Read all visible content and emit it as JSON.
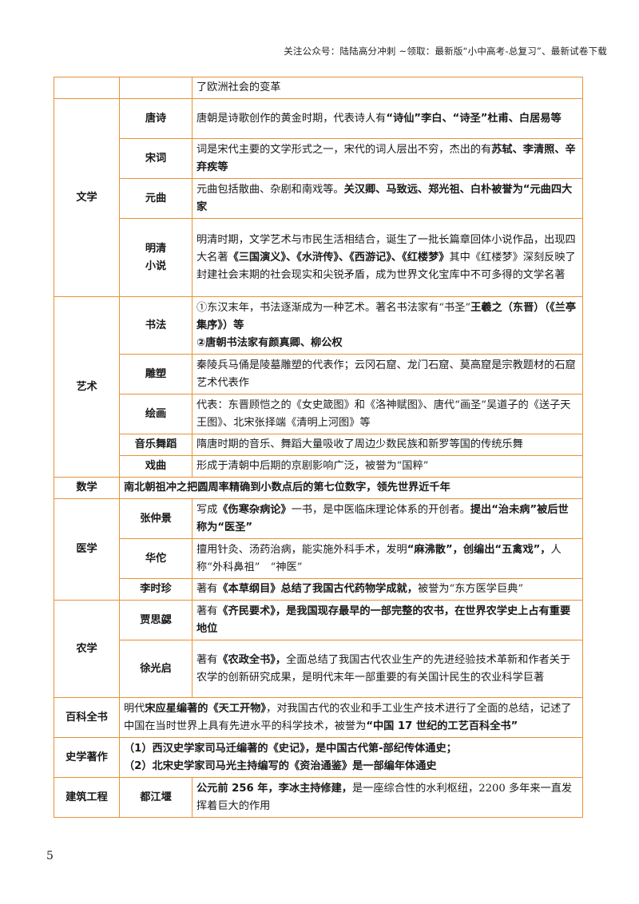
{
  "header": {
    "note": "关注公众号：陆陆高分冲刺  ~领取：最新版“小中高考-总复习”、最新试卷下载"
  },
  "page_number": "5",
  "table": {
    "top_row": {
      "text": "了欧洲社会的变革"
    },
    "literature": {
      "category": "文学",
      "tang": {
        "label": "唐诗",
        "t1": "唐朝是诗歌创作的黄金时期，代表诗人有",
        "b1": "“诗仙”李白、“诗圣”杜甫、白居易等"
      },
      "song": {
        "label": "宋词",
        "t1": "词是宋代主要的文学形式之一，宋代的词人层出不穷，杰出的有",
        "b1": "苏轼、李清照、辛弃疾等"
      },
      "yuan": {
        "label": "元曲",
        "t1": "元曲包括散曲、杂剧和南戏等。",
        "b1": "关汉卿、马致远、郑光祖、白朴被誉为“元曲四大家"
      },
      "mingqing": {
        "label1": "明清",
        "label2": "小说",
        "t1": "明清时期，文学艺术与市民生活相结合，诞生了一批长篇章回体小说作品，出现四大名著",
        "b1": "《三国演义》、《水浒传》、《西游记》、《红楼梦》",
        "t2": "其中《红楼梦》深刻反映了封建社会末期的社会现实和尖锐矛盾，成为世界文化宝库中不可多得的文学名著"
      }
    },
    "art": {
      "category": "艺术",
      "calligraphy": {
        "label": "书法",
        "t1": "①东汉末年，书法逐渐成为一种艺术。著名书法家有“书圣”",
        "b1": "王羲之（东晋）（《兰亭集序》）等",
        "b2": "②唐朝书法家有颜真卿、柳公权"
      },
      "sculpture": {
        "label": "雕塑",
        "t1": "秦陵兵马俑是陵墓雕塑的代表作；云冈石窟、龙门石窟、莫高窟是宗教题材的石窟艺术代表作"
      },
      "painting": {
        "label": "绘画",
        "t1": "代表：东晋顾恺之的《女史箴图》和《洛神赋图》、唐代“画圣”吴道子的《送子天王图》、北宋张择端《清明上河图》等"
      },
      "music": {
        "label": "音乐舞蹈",
        "t1": "隋唐时期的音乐、舞蹈大量吸收了周边少数民族和新罗等国的传统乐舞"
      },
      "opera": {
        "label": "戏曲",
        "t1": "形成于清朝中后期的京剧影响广泛，被誉为“国粹”"
      }
    },
    "math": {
      "category": "数学",
      "b1": "南北朝祖冲之把圆周率精确到小数点后的第七位数字，领先世界近千年"
    },
    "medicine": {
      "category": "医学",
      "zhang": {
        "label": "张仲景",
        "t1": "写成",
        "b1": "《伤寒杂病论》",
        "t2": "一书，是中医临床理论体系的开创者。",
        "b2": "提出“治未病”被后世称为“医圣”"
      },
      "hua": {
        "label": "华佗",
        "t1": "擅用针灸、汤药治病，能实施外科手术，发明",
        "b1": "“麻沸散”，创编出“五禽戏”，",
        "t2": "人称“外科鼻祖”　“神医”"
      },
      "li": {
        "label": "李时珍",
        "t1": "著有",
        "b1": "《本草纲目》总结了我国古代药物学成就，",
        "t2": "被誉为“东方医学巨典”"
      }
    },
    "agriculture": {
      "category": "农学",
      "jia": {
        "label": "贾思勰",
        "t1": "著有",
        "b1": "《齐民要术》，是我国现存最早的一部完整的农书，在世界农学史上占有重要地位"
      },
      "xu": {
        "label": "徐光启",
        "t1": "著有",
        "b1": "《农政全书》，",
        "t2": "全面总结了我国古代农业生产的先进经验技术革新和作者关于农学的创新研究成果，是明代末年一部重要的有关国计民生的农业科学巨著"
      }
    },
    "encyclopedia": {
      "category": "百科全书",
      "t1": "明代",
      "b1": "宋应星编著的《天工开物》",
      "t2": "，对我国古代的农业和手工业生产技术进行了全面的总结，记述了中国在当时世界上具有先进水平的科学技术，被誉为",
      "b2": "“中国 17 世纪的工艺百科全书”"
    },
    "history": {
      "category": "史学著作",
      "b1": "（1）西汉史学家司马迁编著的《史记》，是中国古代第-部纪传体通史；",
      "b2": "（2）北宋史学家司马光主持编写的《资治通鉴》是一部编年体通史"
    },
    "architecture": {
      "category": "建筑工程",
      "label": "都江堰",
      "b1": "公元前 256 年，李冰主持修建，",
      "t1": "是一座综合性的水利枢纽，2200 多年来一直发挥着巨大的作用"
    }
  }
}
